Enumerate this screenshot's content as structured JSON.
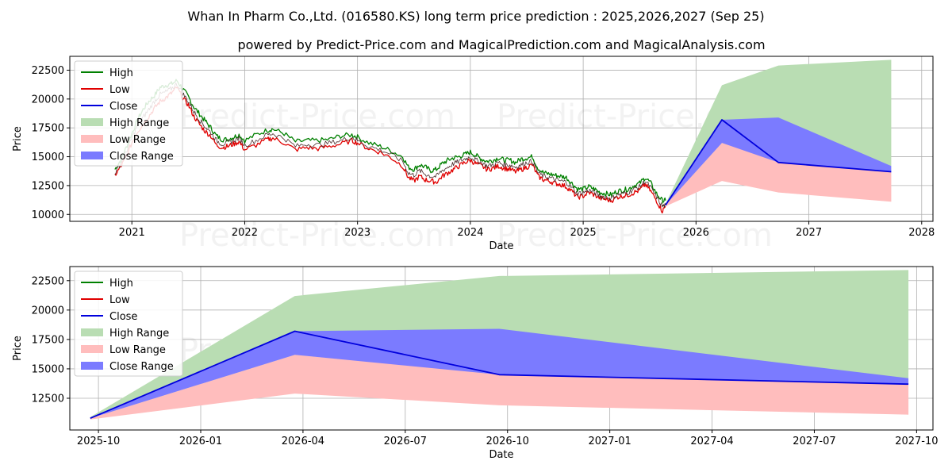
{
  "title_line1": "Whan In Pharm Co.,Ltd. (016580.KS) long term price prediction : 2025,2026,2027 (Sep 25)",
  "title_line2": "powered by Predict-Price.com and MagicalPrediction.com and MagicalAnalysis.com",
  "watermark": "Predict-Price.com",
  "colors": {
    "high": "#008000",
    "low": "#e00000",
    "close": "#0000dd",
    "high_range": "#b9ddb3",
    "low_range": "#ffbdbd",
    "close_range": "#7b7bff"
  },
  "chart_data": [
    {
      "type": "line",
      "name": "full-history",
      "xlabel": "Date",
      "ylabel": "Price",
      "xlim": [
        2020.45,
        2028.1
      ],
      "ylim": [
        9400,
        23700
      ],
      "x_ticks": [
        2021,
        2022,
        2023,
        2024,
        2025,
        2026,
        2027,
        2028
      ],
      "x_tick_labels": [
        "2021",
        "2022",
        "2023",
        "2024",
        "2025",
        "2026",
        "2027",
        "2028"
      ],
      "y_ticks": [
        10000,
        12500,
        15000,
        17500,
        20000,
        22500
      ],
      "y_tick_labels": [
        "10000",
        "12500",
        "15000",
        "17500",
        "20000",
        "22500"
      ],
      "legend": [
        "High",
        "Low",
        "Close",
        "High Range",
        "Low Range",
        "Close Range"
      ],
      "legend_placement": "top-left",
      "history": {
        "x": [
          2020.85,
          2020.9,
          2020.95,
          2021.0,
          2021.05,
          2021.1,
          2021.15,
          2021.2,
          2021.25,
          2021.3,
          2021.35,
          2021.4,
          2021.45,
          2021.5,
          2021.55,
          2021.6,
          2021.65,
          2021.7,
          2021.75,
          2021.8,
          2021.85,
          2021.9,
          2021.95,
          2022.0,
          2022.1,
          2022.2,
          2022.25,
          2022.35,
          2022.45,
          2022.55,
          2022.65,
          2022.75,
          2022.85,
          2022.95,
          2023.0,
          2023.1,
          2023.2,
          2023.3,
          2023.4,
          2023.45,
          2023.5,
          2023.55,
          2023.6,
          2023.65,
          2023.7,
          2023.75,
          2023.8,
          2023.85,
          2023.9,
          2023.95,
          2024.0,
          2024.05,
          2024.1,
          2024.15,
          2024.2,
          2024.25,
          2024.3,
          2024.35,
          2024.4,
          2024.45,
          2024.5,
          2024.55,
          2024.6,
          2024.65,
          2024.7,
          2024.75,
          2024.8,
          2024.85,
          2024.9,
          2024.95,
          2025.0,
          2025.05,
          2025.1,
          2025.15,
          2025.2,
          2025.25,
          2025.3,
          2025.35,
          2025.4,
          2025.45,
          2025.5,
          2025.55,
          2025.6,
          2025.65,
          2025.7,
          2025.73
        ],
        "low": [
          13400,
          14100,
          15000,
          16200,
          17200,
          17800,
          18500,
          19200,
          19800,
          20100,
          20500,
          21000,
          20100,
          19500,
          18500,
          17800,
          17200,
          16800,
          16000,
          15800,
          15900,
          16100,
          16300,
          15600,
          16000,
          16500,
          16600,
          16200,
          15600,
          15800,
          15700,
          15900,
          16100,
          16400,
          16200,
          15700,
          15400,
          14900,
          14200,
          13200,
          12900,
          13300,
          13000,
          12900,
          12800,
          13300,
          13600,
          13900,
          14200,
          14500,
          14700,
          14400,
          14200,
          13900,
          14000,
          14200,
          14000,
          13900,
          13700,
          13900,
          14100,
          14300,
          13300,
          13000,
          12900,
          12700,
          12600,
          12400,
          12000,
          11500,
          11600,
          11900,
          11700,
          11400,
          11300,
          11200,
          11500,
          11600,
          11700,
          11900,
          12100,
          12600,
          12000,
          11200,
          10300,
          10700
        ],
        "high": [
          13900,
          14700,
          15800,
          17000,
          18200,
          19100,
          19800,
          20300,
          21000,
          21200,
          21300,
          21600,
          20900,
          20200,
          19300,
          18700,
          18100,
          17500,
          16800,
          16500,
          16500,
          16700,
          16900,
          16400,
          16900,
          17300,
          17400,
          17000,
          16300,
          16400,
          16400,
          16500,
          16800,
          16900,
          16700,
          16200,
          15900,
          15500,
          15000,
          14100,
          13900,
          14300,
          14100,
          13800,
          13900,
          14400,
          14700,
          14900,
          15000,
          15200,
          15400,
          15100,
          14800,
          14600,
          14700,
          14900,
          14700,
          14700,
          14500,
          14800,
          14900,
          15000,
          14000,
          13600,
          13500,
          13400,
          13300,
          13200,
          12700,
          12200,
          12200,
          12400,
          12200,
          11900,
          11800,
          11700,
          12000,
          12100,
          12200,
          12500,
          12700,
          13200,
          12700,
          11800,
          11200,
          11200
        ],
        "close": [
          13600,
          14400,
          15400,
          16600,
          17700,
          18400,
          19100,
          19800,
          20400,
          20600,
          20900,
          21300,
          20500,
          19800,
          18900,
          18200,
          17600,
          17100,
          16400,
          16100,
          16200,
          16400,
          16600,
          16000,
          16400,
          16900,
          17000,
          16600,
          15900,
          16100,
          16000,
          16200,
          16400,
          16700,
          16400,
          15900,
          15600,
          15200,
          14600,
          13600,
          13400,
          13800,
          13500,
          13300,
          13300,
          13800,
          14100,
          14400,
          14600,
          14800,
          15000,
          14700,
          14500,
          14200,
          14300,
          14500,
          14300,
          14300,
          14100,
          14300,
          14500,
          14600,
          13600,
          13300,
          13200,
          13000,
          12900,
          12800,
          12300,
          11800,
          11900,
          12100,
          11900,
          11600,
          11500,
          11400,
          11700,
          11800,
          11900,
          12200,
          12400,
          12900,
          12300,
          11500,
          10700,
          10800
        ]
      },
      "forecast": {
        "x": [
          2025.73,
          2026.23,
          2026.73,
          2027.73
        ],
        "high_range_upper": [
          10900,
          21200,
          22900,
          23400
        ],
        "high_range_lower": [
          10800,
          16200,
          14600,
          14200
        ],
        "low_range_upper": [
          10800,
          16200,
          14600,
          13700
        ],
        "low_range_lower": [
          10700,
          12900,
          11900,
          11100
        ],
        "close_range_upper": [
          10800,
          18200,
          18400,
          14200
        ],
        "close_range_lower": [
          10800,
          16200,
          14500,
          13700
        ],
        "close": [
          10800,
          18200,
          14500,
          13700
        ]
      }
    },
    {
      "type": "line",
      "name": "forecast-zoom",
      "xlabel": "Date",
      "ylabel": "Price",
      "xlim": [
        2025.68,
        2027.79
      ],
      "ylim": [
        9800,
        23700
      ],
      "x_ticks": [
        2025.75,
        2026.0,
        2026.25,
        2026.5,
        2026.75,
        2027.0,
        2027.25,
        2027.5,
        2027.75
      ],
      "x_tick_labels": [
        "2025-10",
        "2026-01",
        "2026-04",
        "2026-07",
        "2026-10",
        "2027-01",
        "2027-04",
        "2027-07",
        "2027-10"
      ],
      "y_ticks": [
        12500,
        15000,
        17500,
        20000,
        22500
      ],
      "y_tick_labels": [
        "12500",
        "15000",
        "17500",
        "20000",
        "22500"
      ],
      "legend": [
        "High",
        "Low",
        "Close",
        "High Range",
        "Low Range",
        "Close Range"
      ],
      "legend_placement": "top-left",
      "forecast": {
        "x": [
          2025.73,
          2026.23,
          2026.73,
          2027.73
        ],
        "high_range_upper": [
          10900,
          21200,
          22900,
          23400
        ],
        "high_range_lower": [
          10800,
          16200,
          14600,
          14200
        ],
        "low_range_upper": [
          10800,
          16200,
          14600,
          13700
        ],
        "low_range_lower": [
          10700,
          12900,
          11900,
          11100
        ],
        "close_range_upper": [
          10800,
          18200,
          18400,
          14200
        ],
        "close_range_lower": [
          10800,
          16200,
          14500,
          13700
        ],
        "close": [
          10800,
          18200,
          14500,
          13700
        ]
      }
    }
  ]
}
